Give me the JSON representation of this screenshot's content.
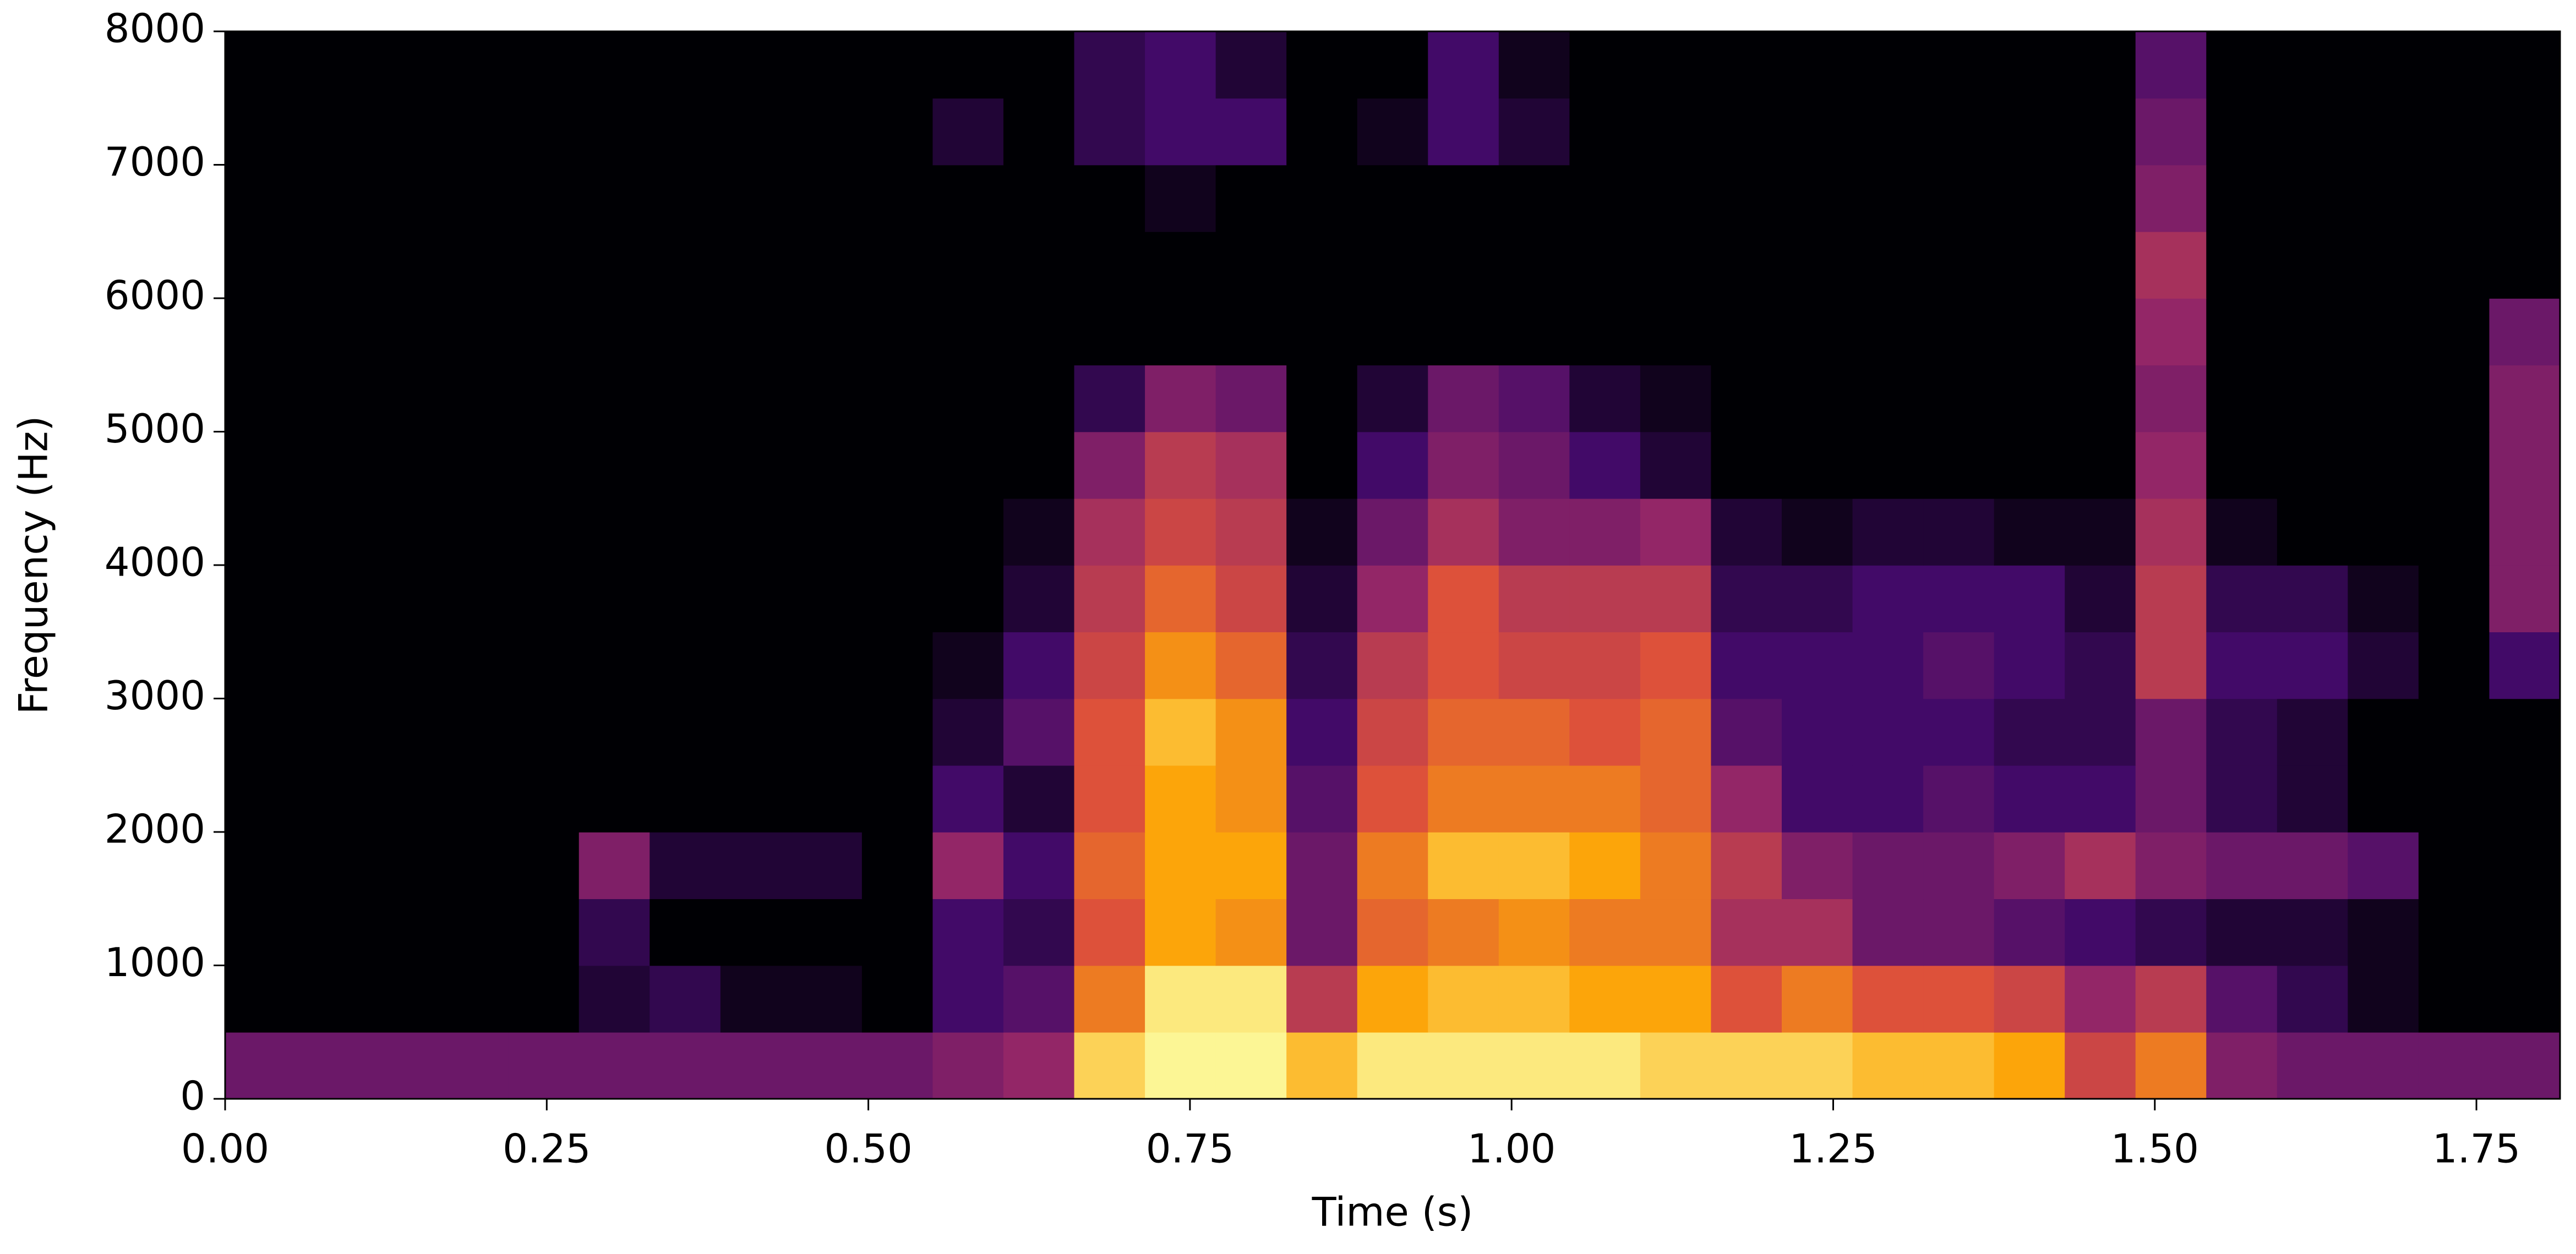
{
  "chart_data": {
    "type": "spectrogram",
    "xlabel": "Time (s)",
    "ylabel": "Frequency (Hz)",
    "xlim": [
      0,
      1.815
    ],
    "ylim": [
      0,
      8000
    ],
    "xticks": [
      {
        "value": 0,
        "label": "0.00"
      },
      {
        "value": 0.25,
        "label": "0.25"
      },
      {
        "value": 0.5,
        "label": "0.50"
      },
      {
        "value": 0.75,
        "label": "0.75"
      },
      {
        "value": 1,
        "label": "1.00"
      },
      {
        "value": 1.25,
        "label": "1.25"
      },
      {
        "value": 1.5,
        "label": "1.50"
      },
      {
        "value": 1.75,
        "label": "1.75"
      }
    ],
    "yticks": [
      0,
      1000,
      2000,
      3000,
      4000,
      5000,
      6000,
      7000,
      8000
    ],
    "colormap": [
      "#000004",
      "#420a68",
      "#932667",
      "#dd513a",
      "#fca50a",
      "#fcffa4"
    ],
    "xbins": [
      0,
      0.055,
      0.11,
      0.165,
      0.22,
      0.275,
      0.33,
      0.385,
      0.44,
      0.495,
      0.55,
      0.605,
      0.66,
      0.715,
      0.77,
      0.825,
      0.88,
      0.935,
      0.99,
      1.045,
      1.1,
      1.155,
      1.21,
      1.265,
      1.32,
      1.375,
      1.43,
      1.485,
      1.54,
      1.595,
      1.65,
      1.705,
      1.76,
      1.815
    ],
    "ybins": [
      0,
      500,
      1000,
      1500,
      2000,
      2500,
      3000,
      3500,
      4000,
      4500,
      5000,
      5500,
      6000,
      6500,
      7000,
      7500,
      8000
    ],
    "z": [
      [
        0.3,
        0.3,
        0.3,
        0.3,
        0.3,
        0.3,
        0.3,
        0.3,
        0.3,
        0.3,
        0.35,
        0.4,
        0.9,
        0.98,
        0.98,
        0.85,
        0.95,
        0.95,
        0.95,
        0.95,
        0.9,
        0.9,
        0.9,
        0.85,
        0.85,
        0.8,
        0.55,
        0.7,
        0.35,
        0.3,
        0.3,
        0.3,
        0.3
      ],
      [
        0,
        0,
        0,
        0,
        0,
        0.1,
        0.15,
        0.05,
        0.05,
        0,
        0.2,
        0.25,
        0.7,
        0.95,
        0.95,
        0.5,
        0.8,
        0.85,
        0.85,
        0.8,
        0.8,
        0.6,
        0.7,
        0.6,
        0.6,
        0.55,
        0.4,
        0.5,
        0.25,
        0.15,
        0.05,
        0,
        0
      ],
      [
        0,
        0,
        0,
        0,
        0,
        0.15,
        0,
        0,
        0,
        0,
        0.2,
        0.15,
        0.6,
        0.8,
        0.75,
        0.3,
        0.65,
        0.7,
        0.75,
        0.7,
        0.7,
        0.45,
        0.45,
        0.3,
        0.3,
        0.25,
        0.2,
        0.15,
        0.1,
        0.1,
        0.05,
        0,
        0
      ],
      [
        0,
        0,
        0,
        0,
        0,
        0.35,
        0.1,
        0.1,
        0.1,
        0,
        0.4,
        0.2,
        0.65,
        0.8,
        0.8,
        0.3,
        0.7,
        0.85,
        0.85,
        0.8,
        0.7,
        0.5,
        0.35,
        0.3,
        0.3,
        0.35,
        0.45,
        0.35,
        0.3,
        0.3,
        0.25,
        0,
        0
      ],
      [
        0,
        0,
        0,
        0,
        0,
        0,
        0,
        0,
        0,
        0,
        0.2,
        0.1,
        0.6,
        0.8,
        0.75,
        0.25,
        0.6,
        0.7,
        0.7,
        0.7,
        0.65,
        0.4,
        0.2,
        0.2,
        0.25,
        0.2,
        0.2,
        0.3,
        0.15,
        0.1,
        0,
        0,
        0
      ],
      [
        0,
        0,
        0,
        0,
        0,
        0,
        0,
        0,
        0,
        0,
        0.1,
        0.25,
        0.6,
        0.85,
        0.75,
        0.2,
        0.55,
        0.65,
        0.65,
        0.6,
        0.65,
        0.25,
        0.2,
        0.2,
        0.2,
        0.15,
        0.15,
        0.3,
        0.15,
        0.1,
        0,
        0,
        0
      ],
      [
        0,
        0,
        0,
        0,
        0,
        0,
        0,
        0,
        0,
        0,
        0.05,
        0.2,
        0.55,
        0.75,
        0.65,
        0.15,
        0.5,
        0.6,
        0.55,
        0.55,
        0.6,
        0.2,
        0.2,
        0.2,
        0.25,
        0.2,
        0.15,
        0.5,
        0.2,
        0.2,
        0.1,
        0,
        0.2
      ],
      [
        0,
        0,
        0,
        0,
        0,
        0,
        0,
        0,
        0,
        0,
        0,
        0.1,
        0.5,
        0.65,
        0.55,
        0.1,
        0.4,
        0.6,
        0.5,
        0.5,
        0.5,
        0.15,
        0.15,
        0.2,
        0.2,
        0.2,
        0.1,
        0.5,
        0.15,
        0.15,
        0.05,
        0,
        0.35
      ],
      [
        0,
        0,
        0,
        0,
        0,
        0,
        0,
        0,
        0,
        0,
        0,
        0.05,
        0.45,
        0.55,
        0.5,
        0.05,
        0.3,
        0.45,
        0.35,
        0.35,
        0.4,
        0.1,
        0.05,
        0.1,
        0.1,
        0.05,
        0.05,
        0.45,
        0.05,
        0,
        0,
        0,
        0.35
      ],
      [
        0,
        0,
        0,
        0,
        0,
        0,
        0,
        0,
        0,
        0,
        0,
        0,
        0.35,
        0.5,
        0.45,
        0,
        0.2,
        0.35,
        0.3,
        0.2,
        0.1,
        0,
        0,
        0,
        0,
        0,
        0,
        0.4,
        0,
        0,
        0,
        0,
        0.35
      ],
      [
        0,
        0,
        0,
        0,
        0,
        0,
        0,
        0,
        0,
        0,
        0,
        0,
        0.15,
        0.35,
        0.3,
        0,
        0.1,
        0.3,
        0.25,
        0.1,
        0.05,
        0,
        0,
        0,
        0,
        0,
        0,
        0.35,
        0,
        0,
        0,
        0,
        0.35
      ],
      [
        0,
        0,
        0,
        0,
        0,
        0,
        0,
        0,
        0,
        0,
        0,
        0,
        0,
        0,
        0,
        0,
        0,
        0,
        0,
        0,
        0,
        0,
        0,
        0,
        0,
        0,
        0,
        0.4,
        0,
        0,
        0,
        0,
        0.3
      ],
      [
        0,
        0,
        0,
        0,
        0,
        0,
        0,
        0,
        0,
        0,
        0,
        0,
        0,
        0,
        0,
        0,
        0,
        0,
        0,
        0,
        0,
        0,
        0,
        0,
        0,
        0,
        0,
        0.45,
        0,
        0,
        0,
        0,
        0
      ],
      [
        0,
        0,
        0,
        0,
        0,
        0,
        0,
        0,
        0,
        0,
        0,
        0,
        0,
        0.05,
        0,
        0,
        0,
        0,
        0,
        0,
        0,
        0,
        0,
        0,
        0,
        0,
        0,
        0.35,
        0,
        0,
        0,
        0,
        0
      ],
      [
        0,
        0,
        0,
        0,
        0,
        0,
        0,
        0,
        0,
        0,
        0.1,
        0,
        0.15,
        0.2,
        0.2,
        0,
        0.05,
        0.2,
        0.1,
        0,
        0,
        0,
        0,
        0,
        0,
        0,
        0,
        0.3,
        0,
        0,
        0,
        0,
        0
      ],
      [
        0,
        0,
        0,
        0,
        0,
        0,
        0,
        0,
        0,
        0,
        0,
        0,
        0.15,
        0.2,
        0.1,
        0,
        0,
        0.2,
        0.05,
        0,
        0,
        0,
        0,
        0,
        0,
        0,
        0,
        0.25,
        0,
        0,
        0,
        0,
        0
      ]
    ]
  }
}
